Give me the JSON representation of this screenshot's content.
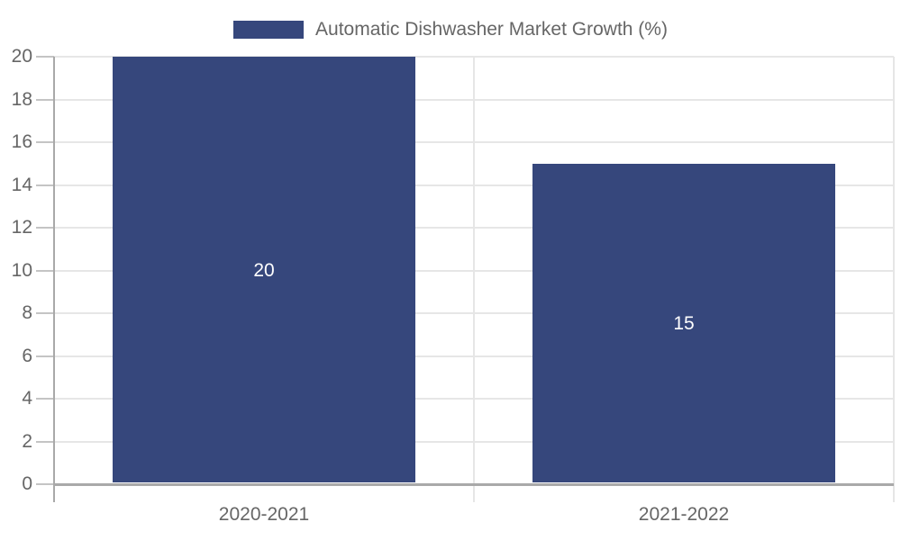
{
  "chart_data": {
    "type": "bar",
    "title": "",
    "categories": [
      "2020-2021",
      "2021-2022"
    ],
    "series": [
      {
        "name": "Automatic Dishwasher Market Growth (%)",
        "values": [
          20,
          15
        ]
      }
    ],
    "data_labels": [
      "20",
      "15"
    ],
    "xlabel": "",
    "ylabel": "",
    "ylim": [
      0,
      20
    ],
    "ytick_step": 2,
    "yticks": [
      0,
      2,
      4,
      6,
      8,
      10,
      12,
      14,
      16,
      18,
      20
    ],
    "grid": true,
    "legend_position": "top"
  },
  "legend": {
    "label": "Automatic Dishwasher Market Growth (%)"
  },
  "colors": {
    "bar": "#36477c",
    "gridline": "#e6e6e6",
    "axis": "#a9a9a9",
    "tick": "#c4c4c4",
    "tick_text": "#666666",
    "legend_text": "#666666",
    "data_label_text": "#ffffff",
    "background": "#ffffff"
  }
}
